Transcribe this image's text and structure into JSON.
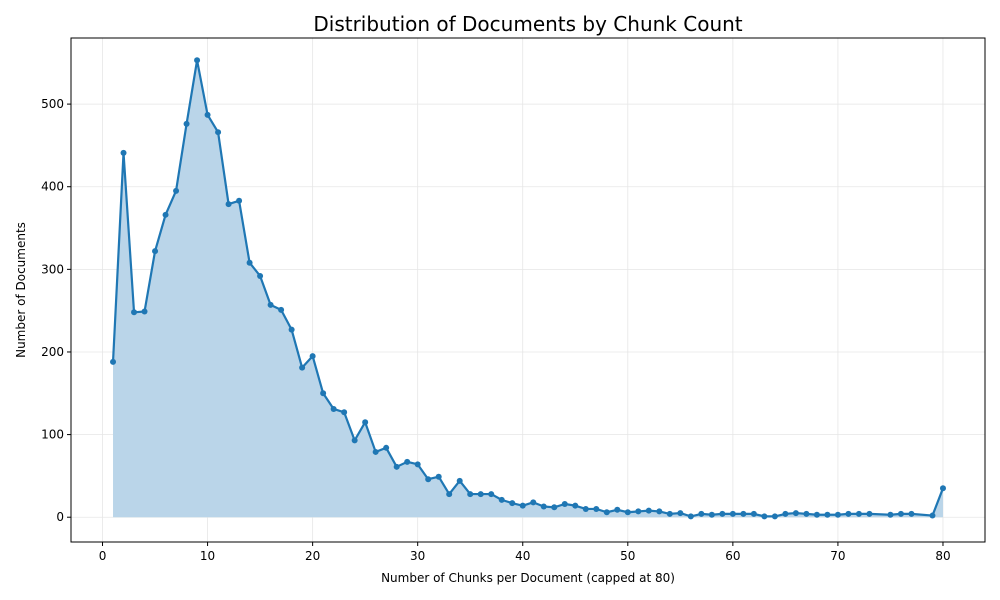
{
  "chart_data": {
    "type": "line",
    "title": "Distribution of Documents by Chunk Count",
    "xlabel": "Number of Chunks per Document (capped at 80)",
    "ylabel": "Number of Documents",
    "xlim": [
      -3,
      84
    ],
    "ylim": [
      -30,
      580
    ],
    "xticks": [
      0,
      10,
      20,
      30,
      40,
      50,
      60,
      70,
      80
    ],
    "yticks": [
      0,
      100,
      200,
      300,
      400,
      500
    ],
    "grid": true,
    "fill_under": true,
    "line_color": "#1f77b4",
    "fill_color": "#bad5e9",
    "series": [
      {
        "x": [
          1,
          2,
          3,
          4,
          5,
          6,
          7,
          8,
          9,
          10,
          11,
          12,
          13,
          14,
          15,
          16,
          17,
          18,
          19,
          20,
          21,
          22,
          23,
          24,
          25,
          26,
          27,
          28,
          29,
          30,
          31,
          32,
          33,
          34,
          35,
          36,
          37,
          38,
          39,
          40,
          41,
          42,
          43,
          44,
          45,
          46,
          47,
          48,
          49,
          50,
          51,
          52,
          53,
          54,
          55,
          56,
          57,
          58,
          59,
          60,
          61,
          62,
          63,
          64,
          65,
          66,
          67,
          68,
          69,
          70,
          71,
          72,
          73,
          75,
          76,
          77,
          79,
          80
        ],
        "values": [
          188,
          441,
          248,
          249,
          322,
          366,
          395,
          476,
          553,
          487,
          466,
          379,
          383,
          308,
          292,
          257,
          251,
          227,
          181,
          195,
          150,
          131,
          127,
          93,
          115,
          79,
          84,
          61,
          67,
          64,
          46,
          49,
          28,
          44,
          28,
          28,
          28,
          21,
          17,
          14,
          18,
          13,
          12,
          16,
          14,
          10,
          10,
          6,
          9,
          6,
          7,
          8,
          7,
          4,
          5,
          1,
          4,
          3,
          4,
          4,
          4,
          4,
          1,
          1,
          4,
          5,
          4,
          3,
          3,
          3,
          4,
          4,
          4,
          3,
          4,
          4,
          2,
          35
        ]
      }
    ]
  }
}
